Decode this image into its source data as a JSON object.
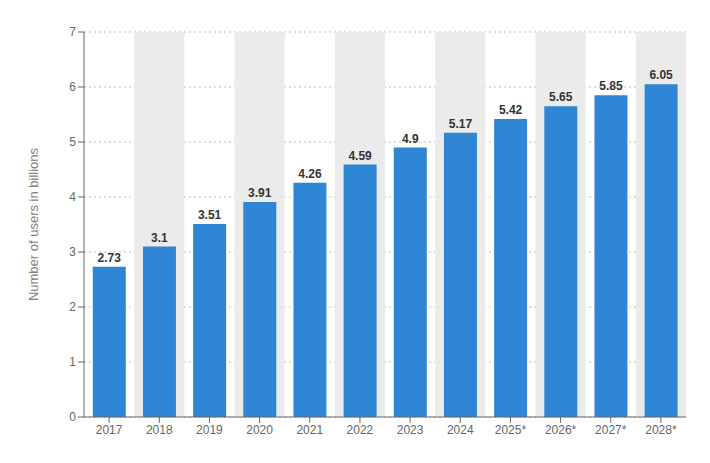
{
  "chart_data": {
    "type": "bar",
    "categories": [
      "2017",
      "2018",
      "2019",
      "2020",
      "2021",
      "2022",
      "2023",
      "2024",
      "2025*",
      "2026*",
      "2027*",
      "2028*"
    ],
    "values": [
      2.73,
      3.1,
      3.51,
      3.91,
      4.26,
      4.59,
      4.9,
      5.17,
      5.42,
      5.65,
      5.85,
      6.05
    ],
    "color": "#2E86D4",
    "ylabel": "Number of users in billions",
    "ylim": [
      0,
      7
    ],
    "yticks": [
      0,
      1,
      2,
      3,
      4,
      5,
      6,
      7
    ],
    "grid": true,
    "data_labels": true
  }
}
